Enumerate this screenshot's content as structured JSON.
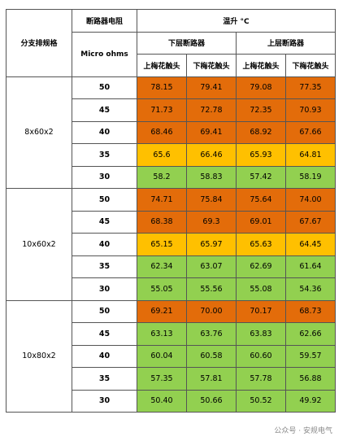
{
  "header": {
    "group_label": "分支排规格",
    "resistance_label": "断路器电阻",
    "resistance_unit": "Micro ohms",
    "temp_rise": "温升 °C",
    "lower_breaker": "下层断路器",
    "upper_breaker": "上层断路器",
    "col_upper_contact": "上梅花触头",
    "col_lower_contact": "下梅花触头"
  },
  "groups": [
    {
      "name": "8x60x2",
      "rows": [
        {
          "res": "50",
          "v": [
            "78.15",
            "79.41",
            "79.08",
            "77.35"
          ],
          "c": "o"
        },
        {
          "res": "45",
          "v": [
            "71.73",
            "72.78",
            "72.35",
            "70.93"
          ],
          "c": "o"
        },
        {
          "res": "40",
          "v": [
            "68.46",
            "69.41",
            "68.92",
            "67.66"
          ],
          "c": "o"
        },
        {
          "res": "35",
          "v": [
            "65.6",
            "66.46",
            "65.93",
            "64.81"
          ],
          "c": "y"
        },
        {
          "res": "30",
          "v": [
            "58.2",
            "58.83",
            "57.42",
            "58.19"
          ],
          "c": "g"
        }
      ]
    },
    {
      "name": "10x60x2",
      "rows": [
        {
          "res": "50",
          "v": [
            "74.71",
            "75.84",
            "75.64",
            "74.00"
          ],
          "c": "o"
        },
        {
          "res": "45",
          "v": [
            "68.38",
            "69.3",
            "69.01",
            "67.67"
          ],
          "c": "o"
        },
        {
          "res": "40",
          "v": [
            "65.15",
            "65.97",
            "65.63",
            "64.45"
          ],
          "c": "y"
        },
        {
          "res": "35",
          "v": [
            "62.34",
            "63.07",
            "62.69",
            "61.64"
          ],
          "c": "g"
        },
        {
          "res": "30",
          "v": [
            "55.05",
            "55.56",
            "55.08",
            "54.36"
          ],
          "c": "g"
        }
      ]
    },
    {
      "name": "10x80x2",
      "rows": [
        {
          "res": "50",
          "v": [
            "69.21",
            "70.00",
            "70.17",
            "68.73"
          ],
          "c": "o"
        },
        {
          "res": "45",
          "v": [
            "63.13",
            "63.76",
            "63.83",
            "62.66"
          ],
          "c": "g"
        },
        {
          "res": "40",
          "v": [
            "60.04",
            "60.58",
            "60.60",
            "59.57"
          ],
          "c": "g"
        },
        {
          "res": "35",
          "v": [
            "57.35",
            "57.81",
            "57.78",
            "56.88"
          ],
          "c": "g"
        },
        {
          "res": "30",
          "v": [
            "50.40",
            "50.66",
            "50.52",
            "49.92"
          ],
          "c": "g"
        }
      ]
    }
  ],
  "colors": {
    "o": "#e36c0a",
    "y": "#ffc000",
    "g": "#92d050"
  },
  "watermark": "公众号 · 安规电气"
}
